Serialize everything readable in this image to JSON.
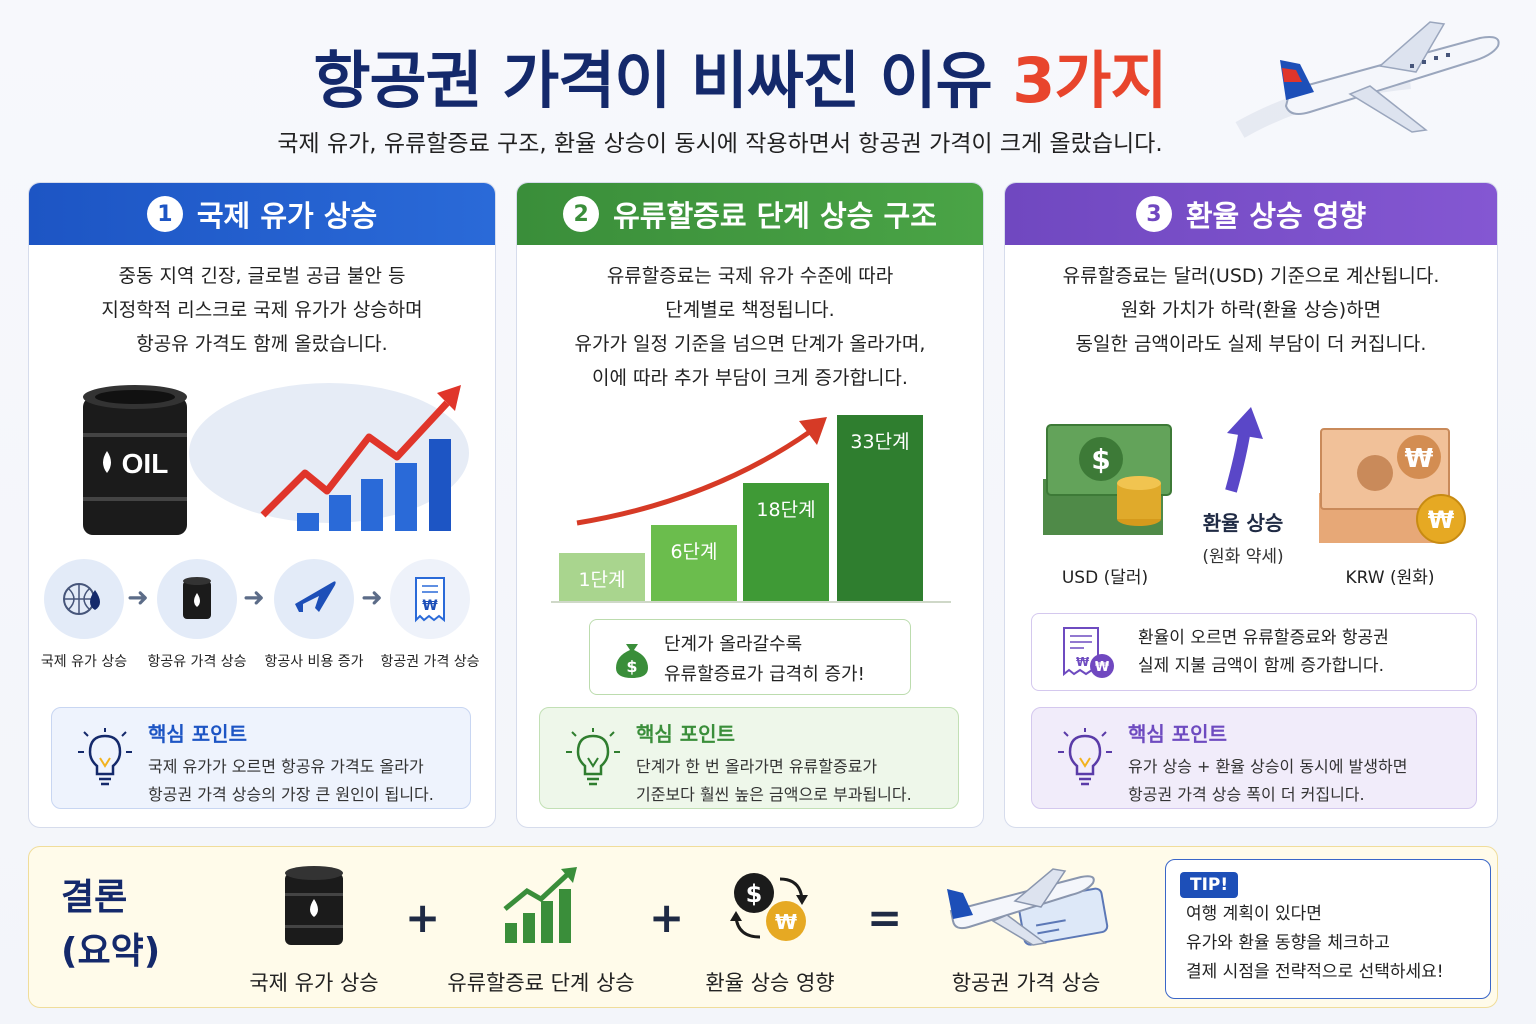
{
  "header": {
    "title_main": "항공권 가격이 비싸진 이유 ",
    "title_accent": "3가지",
    "subtitle": "국제 유가, 유류할증료 구조, 환율 상승이 동시에 작용하면서 항공권 가격이 크게 올랐습니다."
  },
  "cards": [
    {
      "number": "1",
      "title": "국제 유가 상승",
      "desc": [
        "중동 지역 긴장, 글로벌 공급 불안 등",
        "지정학적 리스크로 국제 유가가 상승하며",
        "항공유 가격도 함께 올랐습니다."
      ],
      "barrel_label": "OIL",
      "flow": [
        "국제 유가 상승",
        "항공유 가격 상승",
        "항공사 비용 증가",
        "항공권 가격 상승"
      ],
      "key_title": "핵심 포인트",
      "key_text": [
        "국제 유가가 오르면 항공유 가격도 올라가",
        "항공권 가격 상승의 가장 큰 원인이 됩니다."
      ]
    },
    {
      "number": "2",
      "title": "유류할증료 단계 상승 구조",
      "desc": [
        "유류할증료는 국제 유가 수준에 따라",
        "단계별로 책정됩니다.",
        "유가가 일정 기준을 넘으면 단계가 올라가며,",
        "이에 따라 추가 부담이 크게 증가합니다."
      ],
      "bars": [
        "1단계",
        "6단계",
        "18단계",
        "33단계"
      ],
      "note": [
        "단계가 올라갈수록",
        "유류할증료가 급격히 증가!"
      ],
      "key_title": "핵심 포인트",
      "key_text": [
        "단계가 한 번 올라가면 유류할증료가",
        "기준보다 훨씬 높은 금액으로 부과됩니다."
      ]
    },
    {
      "number": "3",
      "title": "환율 상승 영향",
      "desc": [
        "유류할증료는 달러(USD) 기준으로 계산됩니다.",
        "원화 가치가 하락(환율 상승)하면",
        "동일한 금액이라도 실제 부담이 더 커집니다."
      ],
      "usd_label": "USD (달러)",
      "krw_label": "KRW (원화)",
      "rate_label": "환율 상승",
      "rate_sub": "(원화 약세)",
      "note": [
        "환율이 오르면 유류할증료와 항공권",
        "실제 지불 금액이 함께 증가합니다."
      ],
      "key_title": "핵심 포인트",
      "key_text": [
        "유가 상승 + 환율 상승이 동시에 발생하면",
        "항공권 가격 상승 폭이 더 커집니다."
      ]
    }
  ],
  "summary": {
    "title": [
      "결론",
      "(요약)"
    ],
    "items": [
      "국제 유가 상승",
      "유류할증료 단계 상승",
      "환율 상승 영향",
      "항공권 가격 상승"
    ],
    "ops": [
      "+",
      "+",
      "="
    ],
    "tip_badge": "TIP!",
    "tip_text": [
      "여행 계획이 있다면",
      "유가와 환율 동향을 체크하고",
      "결제 시점을 전략적으로 선택하세요!"
    ]
  },
  "colors": {
    "navy": "#14296b",
    "accent_red": "#e8452c",
    "blue": "#1d55c4",
    "green": "#3a8e3a",
    "purple": "#7048c0"
  }
}
